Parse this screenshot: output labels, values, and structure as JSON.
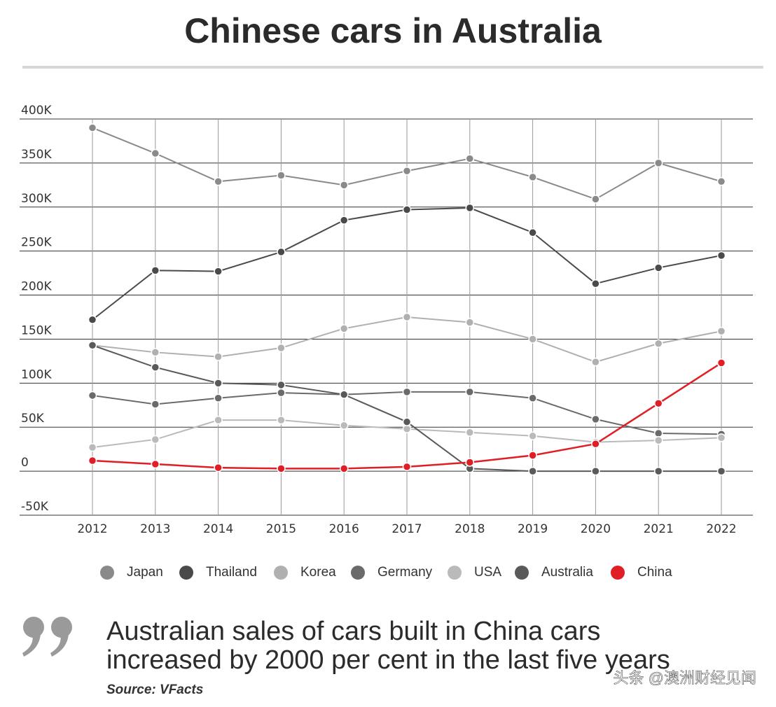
{
  "chart_data": {
    "type": "line",
    "title": "Chinese cars in Australia",
    "categories": [
      "2012",
      "2013",
      "2014",
      "2015",
      "2016",
      "2017",
      "2018",
      "2019",
      "2020",
      "2021",
      "2022"
    ],
    "series": [
      {
        "name": "Japan",
        "color": "#8a8a8a",
        "values": [
          390000,
          361000,
          329000,
          336000,
          325000,
          341000,
          355000,
          334000,
          309000,
          350000,
          329000
        ]
      },
      {
        "name": "Thailand",
        "color": "#4a4a4a",
        "values": [
          172000,
          228000,
          227000,
          249000,
          285000,
          297000,
          299000,
          271000,
          213000,
          231000,
          245000
        ]
      },
      {
        "name": "Korea",
        "color": "#b0b0b0",
        "values": [
          143000,
          135000,
          130000,
          140000,
          162000,
          175000,
          169000,
          150000,
          124000,
          145000,
          159000
        ]
      },
      {
        "name": "Germany",
        "color": "#6a6a6a",
        "values": [
          86000,
          76000,
          83000,
          89000,
          87000,
          90000,
          90000,
          83000,
          59000,
          43000,
          42000
        ]
      },
      {
        "name": "USA",
        "color": "#bababa",
        "values": [
          27000,
          36000,
          58000,
          58000,
          52000,
          48000,
          44000,
          40000,
          33000,
          35000,
          38000
        ]
      },
      {
        "name": "Australia",
        "color": "#5a5a5a",
        "values": [
          143000,
          118000,
          100000,
          98000,
          87000,
          56000,
          3000,
          0,
          0,
          0,
          0
        ]
      },
      {
        "name": "China",
        "color": "#e01e26",
        "values": [
          12000,
          8000,
          4000,
          3000,
          3000,
          5000,
          10000,
          18000,
          31000,
          77000,
          123000
        ]
      }
    ],
    "ylim": [
      -50000,
      400000
    ],
    "yticks": [
      {
        "value": -50000,
        "label": "-50K"
      },
      0,
      {
        "value": 50000,
        "label": "50K"
      },
      {
        "value": 100000,
        "label": "100K"
      },
      {
        "value": 150000,
        "label": "150K"
      },
      {
        "value": 200000,
        "label": "200K"
      },
      {
        "value": 250000,
        "label": "250K"
      },
      {
        "value": 300000,
        "label": "300K"
      },
      {
        "value": 350000,
        "label": "350K"
      },
      {
        "value": {
          "value": 400000,
          "label": "400K"
        },
        "label": "400K"
      }
    ],
    "grid": true,
    "quote": [
      "Australian sales of cars built in China cars",
      "increased by 2000 per cent in the last five years"
    ],
    "source": "Source: VFacts",
    "watermark": "头条 @澳洲财经见闻"
  }
}
